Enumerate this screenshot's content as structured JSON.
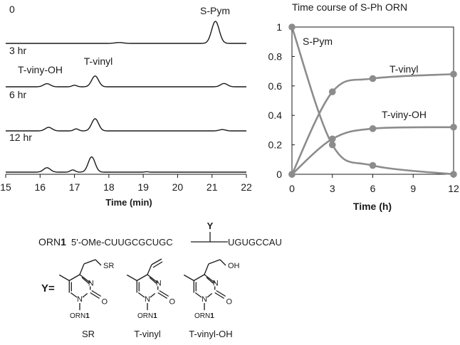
{
  "chart_data": [
    {
      "type": "line",
      "title": "",
      "xlabel": "Time (min)",
      "ylabel": "",
      "xlim": [
        15,
        22
      ],
      "x_ticks": [
        "15",
        "16",
        "17",
        "18",
        "19",
        "20",
        "21",
        "22"
      ],
      "traces": [
        {
          "label": "0",
          "peaks": [
            {
              "x": 18.3,
              "height": 0.04,
              "width": 0.12
            },
            {
              "x": 21.1,
              "height": 1.0,
              "width": 0.11,
              "label": "S-Pym"
            }
          ]
        },
        {
          "label": "3 hr",
          "peaks": [
            {
              "x": 16.2,
              "height": 0.14,
              "width": 0.1,
              "label": "T-viny-OH"
            },
            {
              "x": 17.0,
              "height": 0.07,
              "width": 0.07
            },
            {
              "x": 17.6,
              "height": 0.49,
              "width": 0.1,
              "label": "T-vinyl"
            },
            {
              "x": 21.35,
              "height": 0.15,
              "width": 0.1
            }
          ]
        },
        {
          "label": "6 hr",
          "peaks": [
            {
              "x": 16.25,
              "height": 0.16,
              "width": 0.1
            },
            {
              "x": 17.05,
              "height": 0.09,
              "width": 0.07
            },
            {
              "x": 17.6,
              "height": 0.55,
              "width": 0.1
            },
            {
              "x": 21.3,
              "height": 0.06,
              "width": 0.09
            }
          ]
        },
        {
          "label": "12 hr",
          "peaks": [
            {
              "x": 16.2,
              "height": 0.2,
              "width": 0.1
            },
            {
              "x": 16.95,
              "height": 0.1,
              "width": 0.07
            },
            {
              "x": 17.5,
              "height": 0.69,
              "width": 0.1
            },
            {
              "x": 19.1,
              "height": 0.02,
              "width": 0.05
            }
          ]
        }
      ]
    },
    {
      "type": "line",
      "title": "Time course of S-Ph ORN",
      "xlabel": "Time (h)",
      "ylabel": "",
      "xlim": [
        0,
        12
      ],
      "ylim": [
        0,
        1
      ],
      "x_ticks": [
        "0",
        "3",
        "6",
        "9",
        "12"
      ],
      "y_ticks": [
        "0",
        "0.2",
        "0.4",
        "0.6",
        "0.8",
        "1"
      ],
      "x": [
        0,
        3,
        6,
        12
      ],
      "series": [
        {
          "name": "S-Pym",
          "values": [
            1.0,
            0.2,
            0.06,
            0.0
          ]
        },
        {
          "name": "T-vinyl",
          "values": [
            0.0,
            0.56,
            0.65,
            0.68
          ]
        },
        {
          "name": "T-viny-OH",
          "values": [
            0.0,
            0.24,
            0.31,
            0.32
          ]
        }
      ]
    }
  ],
  "scheme": {
    "orn_label": "ORN",
    "orn_num": "1",
    "five_prime": "5'-OMe-CUUGCGCUGC",
    "three_prime": "UGUGCCAU",
    "y_marker": "Y",
    "y_eq": "Y=",
    "structures": [
      {
        "substituent": "SR",
        "ring_n1": "N",
        "ring_n3": "N",
        "carbonyl_o": "O",
        "sub_orn": "ORN",
        "sub_num": "1",
        "caption": "SR"
      },
      {
        "substituent": "",
        "ring_n1": "N",
        "ring_n3": "N",
        "carbonyl_o": "O",
        "sub_orn": "ORN",
        "sub_num": "1",
        "caption": "T-vinyl"
      },
      {
        "substituent": "OH",
        "ring_n1": "N",
        "ring_n3": "N",
        "carbonyl_o": "O",
        "sub_orn": "ORN",
        "sub_num": "1",
        "caption": "T-vinyl-OH"
      }
    ]
  }
}
